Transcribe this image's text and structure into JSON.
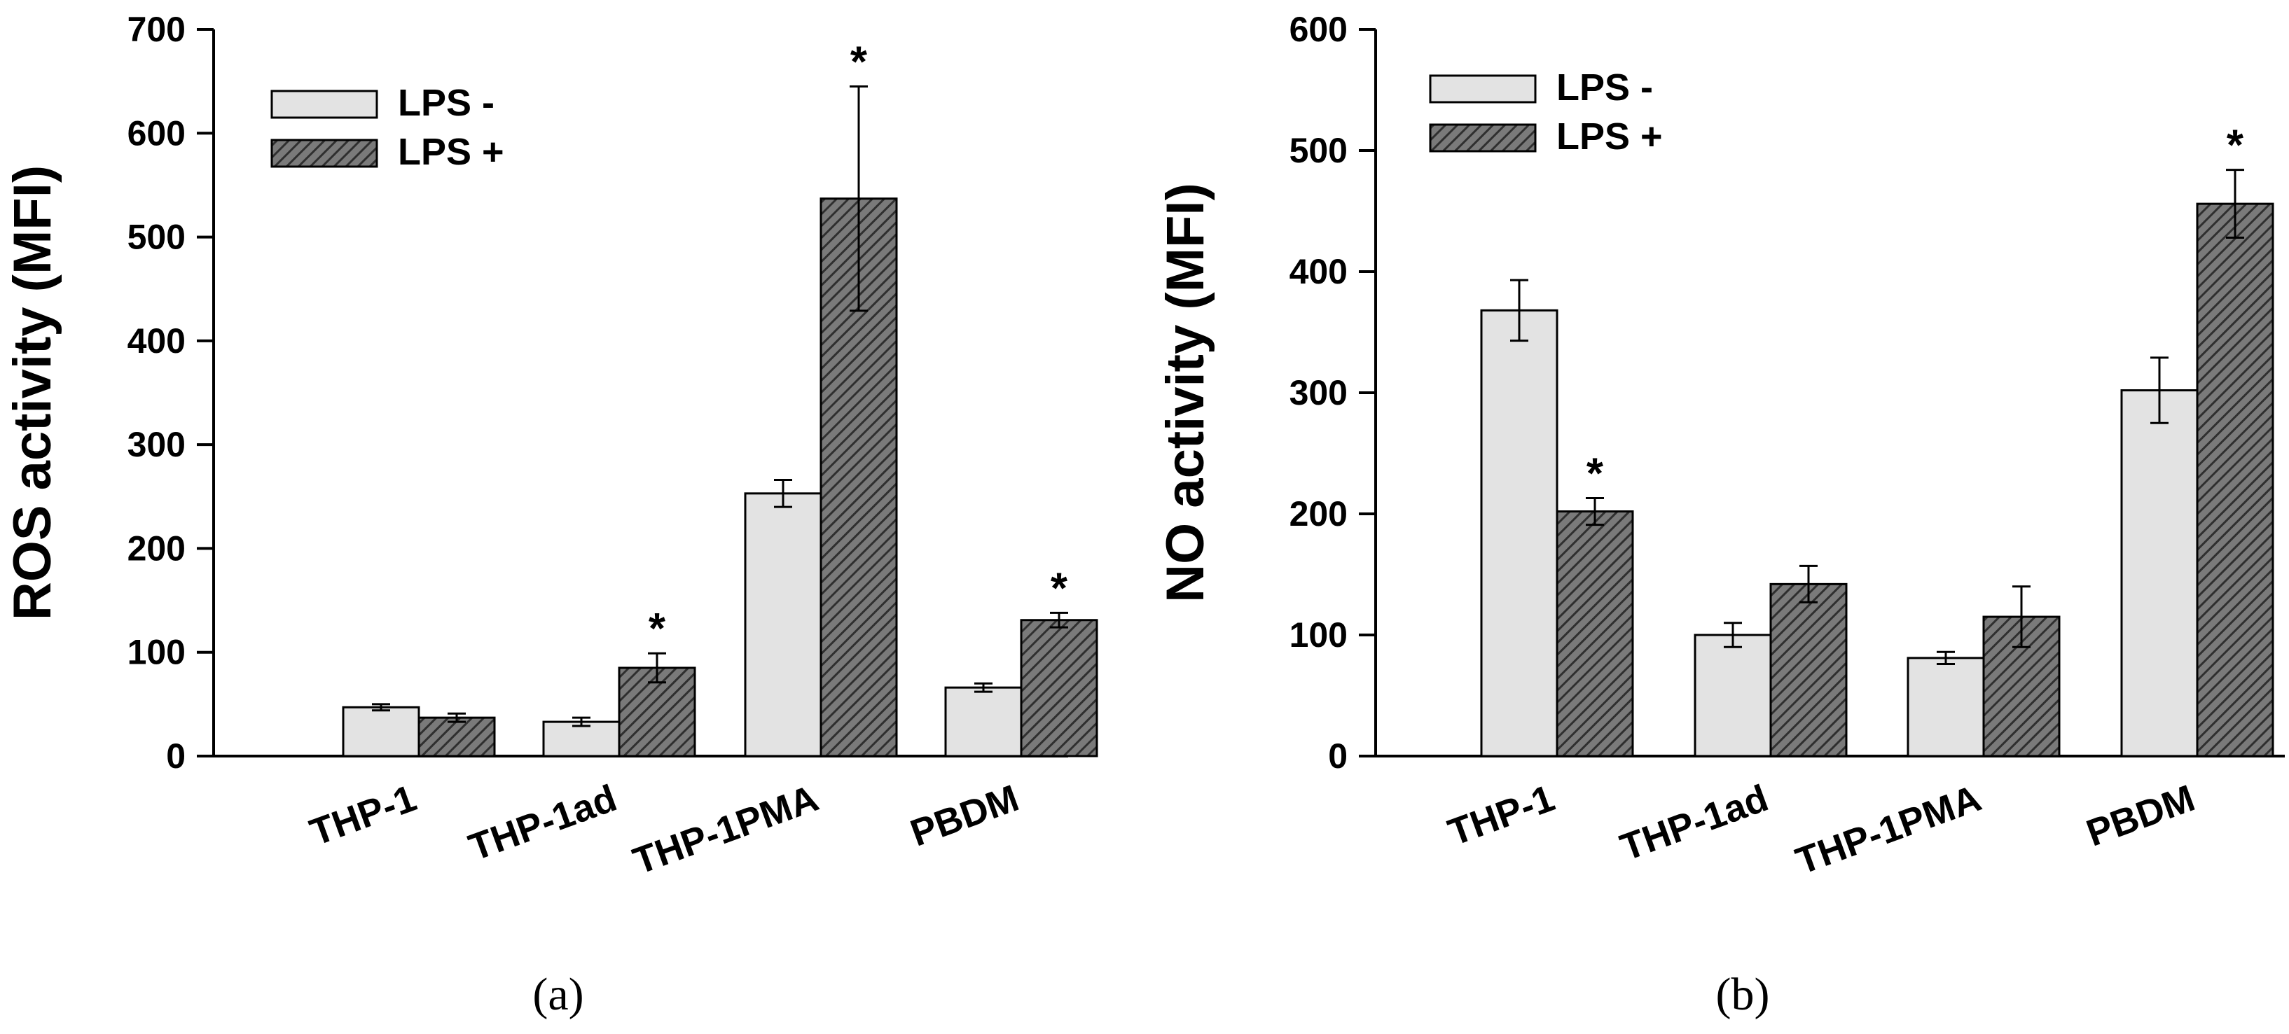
{
  "colors": {
    "lps_minus_fill": "#e3e3e3",
    "lps_plus_fill": "#7a7a7a",
    "hatch_stroke": "#2f2f2f",
    "axis": "#000000",
    "background": "#ffffff"
  },
  "chart_data": [
    {
      "type": "bar",
      "panel_label": "(a)",
      "title": "",
      "xlabel": "",
      "ylabel": "ROS activity (MFI)",
      "ylim": [
        0,
        700
      ],
      "yticks": [
        0,
        100,
        200,
        300,
        400,
        500,
        600,
        700
      ],
      "tick_labels": [
        "0",
        "100",
        "200",
        "300",
        "400",
        "500",
        "600",
        "700"
      ],
      "categories": [
        "THP-1",
        "THP-1ad",
        "THP-1PMA",
        "PBDM"
      ],
      "legend_position": "top-left",
      "series": [
        {
          "name": "LPS -",
          "pattern": "solid",
          "values": [
            47,
            33,
            253,
            66
          ],
          "errors": [
            3,
            4,
            13,
            4
          ],
          "significant": [
            "",
            "",
            "",
            ""
          ]
        },
        {
          "name": "LPS +",
          "pattern": "hatched",
          "values": [
            37,
            85,
            537,
            131
          ],
          "errors": [
            4,
            14,
            108,
            7
          ],
          "significant": [
            "",
            "*",
            "*",
            "*"
          ]
        }
      ]
    },
    {
      "type": "bar",
      "panel_label": "(b)",
      "title": "",
      "xlabel": "",
      "ylabel": "NO activity (MFI)",
      "ylim": [
        0,
        600
      ],
      "yticks": [
        0,
        100,
        200,
        300,
        400,
        500,
        600
      ],
      "tick_labels": [
        "0",
        "100",
        "200",
        "300",
        "400",
        "500",
        "600"
      ],
      "categories": [
        "THP-1",
        "THP-1ad",
        "THP-1PMA",
        "PBDM"
      ],
      "legend_position": "top-left",
      "series": [
        {
          "name": "LPS -",
          "pattern": "solid",
          "values": [
            368,
            100,
            81,
            302
          ],
          "errors": [
            25,
            10,
            5,
            27
          ],
          "significant": [
            "",
            "",
            "",
            ""
          ]
        },
        {
          "name": "LPS +",
          "pattern": "hatched",
          "values": [
            202,
            142,
            115,
            456
          ],
          "errors": [
            11,
            15,
            25,
            28
          ],
          "significant": [
            "*",
            "",
            "",
            "*"
          ]
        }
      ]
    }
  ]
}
